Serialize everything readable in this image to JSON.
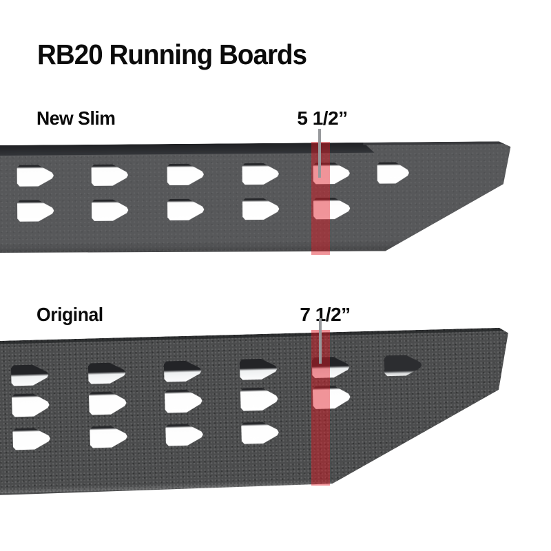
{
  "title": "RB20 Running Boards",
  "boards": [
    {
      "name": "New Slim",
      "measurement": "5 1/2”",
      "hole_rows": [
        6,
        5
      ]
    },
    {
      "name": "Original",
      "measurement": "7 1/2”",
      "hole_rows": [
        6,
        5,
        4
      ]
    }
  ],
  "colors": {
    "highlight_red": "#e11923",
    "pointer_gray": "#97999c",
    "slim_board_gray": "#57585a",
    "original_board_gray": "#4b4c4d",
    "text_black": "#0b0b0b"
  }
}
